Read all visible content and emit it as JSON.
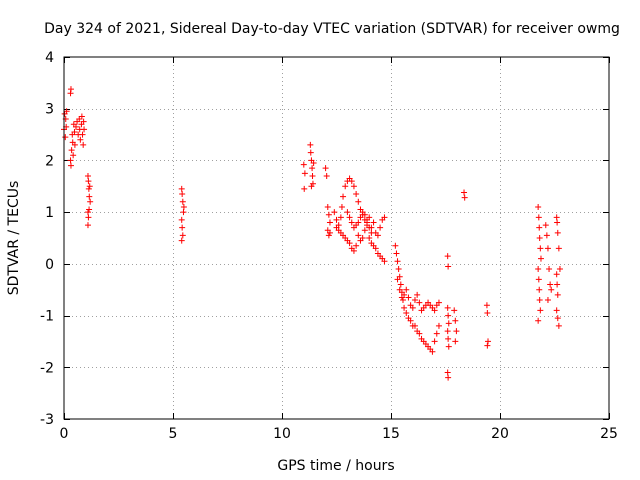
{
  "chart_data": {
    "type": "scatter",
    "title": "Day 324 of 2021, Sidereal Day-to-day VTEC variation (SDTVAR) for receiver owmg",
    "xlabel": "GPS time / hours",
    "ylabel": "SDTVAR / TECUs",
    "xlim": [
      0,
      25
    ],
    "ylim": [
      -3,
      4
    ],
    "xticks": [
      "0",
      "5",
      "10",
      "15",
      "20",
      "25"
    ],
    "yticks": [
      "-3",
      "-2",
      "-1",
      "0",
      "1",
      "2",
      "3",
      "4"
    ],
    "xtick_values": [
      0,
      5,
      10,
      15,
      20,
      25
    ],
    "ytick_values": [
      -3,
      -2,
      -1,
      0,
      1,
      2,
      3,
      4
    ],
    "grid": true,
    "marker": "+",
    "color": "#ff0000",
    "series": [
      {
        "name": "SDTVAR",
        "points": [
          [
            0.0,
            2.6
          ],
          [
            0.03,
            2.9
          ],
          [
            0.06,
            2.45
          ],
          [
            0.08,
            2.8
          ],
          [
            0.1,
            2.65
          ],
          [
            0.12,
            2.95
          ],
          [
            0.3,
            3.3
          ],
          [
            0.32,
            3.38
          ],
          [
            0.3,
            2.0
          ],
          [
            0.32,
            1.9
          ],
          [
            0.35,
            2.2
          ],
          [
            0.38,
            2.5
          ],
          [
            0.4,
            2.35
          ],
          [
            0.42,
            2.1
          ],
          [
            0.45,
            2.7
          ],
          [
            0.48,
            2.55
          ],
          [
            0.5,
            2.3
          ],
          [
            0.55,
            2.65
          ],
          [
            0.6,
            2.75
          ],
          [
            0.65,
            2.5
          ],
          [
            0.7,
            2.8
          ],
          [
            0.72,
            2.6
          ],
          [
            0.75,
            2.4
          ],
          [
            0.8,
            2.7
          ],
          [
            0.82,
            2.85
          ],
          [
            0.85,
            2.5
          ],
          [
            0.88,
            2.3
          ],
          [
            0.9,
            2.75
          ],
          [
            0.92,
            2.6
          ],
          [
            1.1,
            1.7
          ],
          [
            1.12,
            1.6
          ],
          [
            1.14,
            1.45
          ],
          [
            1.16,
            1.3
          ],
          [
            1.18,
            1.5
          ],
          [
            1.2,
            1.2
          ],
          [
            1.1,
            1.0
          ],
          [
            1.12,
            0.9
          ],
          [
            1.15,
            1.05
          ],
          [
            1.1,
            0.75
          ],
          [
            5.4,
            1.45
          ],
          [
            5.42,
            1.35
          ],
          [
            5.45,
            1.2
          ],
          [
            5.5,
            1.1
          ],
          [
            5.48,
            1.0
          ],
          [
            5.4,
            0.85
          ],
          [
            5.42,
            0.7
          ],
          [
            5.45,
            0.55
          ],
          [
            5.4,
            0.45
          ],
          [
            11.0,
            1.92
          ],
          [
            11.05,
            1.75
          ],
          [
            11.02,
            1.45
          ],
          [
            11.3,
            2.3
          ],
          [
            11.32,
            2.15
          ],
          [
            11.35,
            2.0
          ],
          [
            11.38,
            1.85
          ],
          [
            11.4,
            1.7
          ],
          [
            11.42,
            1.55
          ],
          [
            11.45,
            1.95
          ],
          [
            11.35,
            1.5
          ],
          [
            12.0,
            1.85
          ],
          [
            12.05,
            1.7
          ],
          [
            12.1,
            1.1
          ],
          [
            12.15,
            0.95
          ],
          [
            12.2,
            0.8
          ],
          [
            12.1,
            0.65
          ],
          [
            12.15,
            0.55
          ],
          [
            12.2,
            0.6
          ],
          [
            12.4,
            1.0
          ],
          [
            12.5,
            0.85
          ],
          [
            12.6,
            0.75
          ],
          [
            12.7,
            0.9
          ],
          [
            12.75,
            1.1
          ],
          [
            12.8,
            1.3
          ],
          [
            12.9,
            1.5
          ],
          [
            13.0,
            1.6
          ],
          [
            13.1,
            1.65
          ],
          [
            13.2,
            1.6
          ],
          [
            13.3,
            1.5
          ],
          [
            13.4,
            1.35
          ],
          [
            13.5,
            1.2
          ],
          [
            13.6,
            1.05
          ],
          [
            13.7,
            0.95
          ],
          [
            13.8,
            0.85
          ],
          [
            13.9,
            0.75
          ],
          [
            14.0,
            0.7
          ],
          [
            14.1,
            0.6
          ],
          [
            12.5,
            0.7
          ],
          [
            12.6,
            0.65
          ],
          [
            12.7,
            0.6
          ],
          [
            12.8,
            0.55
          ],
          [
            12.9,
            0.5
          ],
          [
            13.0,
            0.45
          ],
          [
            13.1,
            0.4
          ],
          [
            13.2,
            0.3
          ],
          [
            13.3,
            0.25
          ],
          [
            13.4,
            0.35
          ],
          [
            13.5,
            0.55
          ],
          [
            13.6,
            0.45
          ],
          [
            13.7,
            0.5
          ],
          [
            13.8,
            0.65
          ],
          [
            13.9,
            0.8
          ],
          [
            14.0,
            0.9
          ],
          [
            14.1,
            0.7
          ],
          [
            14.2,
            0.8
          ],
          [
            14.3,
            0.6
          ],
          [
            14.4,
            0.55
          ],
          [
            14.5,
            0.7
          ],
          [
            14.6,
            0.85
          ],
          [
            14.7,
            0.9
          ],
          [
            13.0,
            1.0
          ],
          [
            13.1,
            0.9
          ],
          [
            13.2,
            0.8
          ],
          [
            13.3,
            0.7
          ],
          [
            13.4,
            0.75
          ],
          [
            13.5,
            0.8
          ],
          [
            13.6,
            0.9
          ],
          [
            13.7,
            1.0
          ],
          [
            13.8,
            0.95
          ],
          [
            13.9,
            0.85
          ],
          [
            14.0,
            0.5
          ],
          [
            14.1,
            0.4
          ],
          [
            14.2,
            0.35
          ],
          [
            14.3,
            0.3
          ],
          [
            14.4,
            0.2
          ],
          [
            14.5,
            0.15
          ],
          [
            14.6,
            0.1
          ],
          [
            14.7,
            0.05
          ],
          [
            15.2,
            0.35
          ],
          [
            15.25,
            0.2
          ],
          [
            15.3,
            0.05
          ],
          [
            15.35,
            -0.1
          ],
          [
            15.4,
            -0.25
          ],
          [
            15.45,
            -0.4
          ],
          [
            15.5,
            -0.55
          ],
          [
            15.55,
            -0.7
          ],
          [
            15.6,
            -0.85
          ],
          [
            15.7,
            -0.95
          ],
          [
            15.8,
            -1.05
          ],
          [
            15.9,
            -1.1
          ],
          [
            16.0,
            -1.2
          ],
          [
            15.3,
            -0.3
          ],
          [
            15.4,
            -0.5
          ],
          [
            15.5,
            -0.65
          ],
          [
            15.6,
            -0.6
          ],
          [
            15.7,
            -0.5
          ],
          [
            15.8,
            -0.65
          ],
          [
            15.9,
            -0.8
          ],
          [
            16.0,
            -0.85
          ],
          [
            16.1,
            -0.7
          ],
          [
            16.2,
            -0.6
          ],
          [
            16.3,
            -0.75
          ],
          [
            16.4,
            -0.9
          ],
          [
            16.5,
            -0.85
          ],
          [
            16.6,
            -0.8
          ],
          [
            16.7,
            -0.75
          ],
          [
            16.8,
            -0.8
          ],
          [
            16.9,
            -0.85
          ],
          [
            17.0,
            -0.9
          ],
          [
            17.1,
            -0.8
          ],
          [
            17.2,
            -0.75
          ],
          [
            16.1,
            -1.2
          ],
          [
            16.2,
            -1.3
          ],
          [
            16.3,
            -1.35
          ],
          [
            16.4,
            -1.45
          ],
          [
            16.5,
            -1.5
          ],
          [
            16.6,
            -1.55
          ],
          [
            16.7,
            -1.6
          ],
          [
            16.8,
            -1.65
          ],
          [
            16.9,
            -1.7
          ],
          [
            17.0,
            -1.5
          ],
          [
            17.1,
            -1.35
          ],
          [
            17.2,
            -1.2
          ],
          [
            17.6,
            -0.85
          ],
          [
            17.62,
            -1.0
          ],
          [
            17.65,
            -1.15
          ],
          [
            17.6,
            -1.3
          ],
          [
            17.62,
            -1.45
          ],
          [
            17.65,
            -1.6
          ],
          [
            17.6,
            -2.1
          ],
          [
            17.62,
            -2.2
          ],
          [
            17.9,
            -0.9
          ],
          [
            17.95,
            -1.1
          ],
          [
            18.0,
            -1.3
          ],
          [
            17.95,
            -1.5
          ],
          [
            17.6,
            0.15
          ],
          [
            17.62,
            -0.05
          ],
          [
            18.35,
            1.38
          ],
          [
            18.38,
            1.28
          ],
          [
            19.4,
            -0.8
          ],
          [
            19.42,
            -0.95
          ],
          [
            19.45,
            -1.5
          ],
          [
            19.42,
            -1.58
          ],
          [
            21.75,
            1.1
          ],
          [
            21.78,
            0.9
          ],
          [
            21.8,
            0.7
          ],
          [
            21.82,
            0.5
          ],
          [
            21.85,
            0.3
          ],
          [
            21.88,
            0.1
          ],
          [
            21.75,
            -0.1
          ],
          [
            21.78,
            -0.3
          ],
          [
            21.8,
            -0.5
          ],
          [
            21.82,
            -0.7
          ],
          [
            21.85,
            -0.9
          ],
          [
            21.75,
            -1.1
          ],
          [
            22.1,
            0.75
          ],
          [
            22.15,
            0.55
          ],
          [
            22.2,
            0.3
          ],
          [
            22.25,
            -0.1
          ],
          [
            22.3,
            -0.4
          ],
          [
            22.35,
            -0.5
          ],
          [
            22.2,
            -0.7
          ],
          [
            22.6,
            0.9
          ],
          [
            22.62,
            0.8
          ],
          [
            22.65,
            0.6
          ],
          [
            22.7,
            0.3
          ],
          [
            22.75,
            -0.1
          ],
          [
            22.6,
            -0.2
          ],
          [
            22.62,
            -0.4
          ],
          [
            22.65,
            -0.6
          ],
          [
            22.6,
            -0.9
          ],
          [
            22.65,
            -1.05
          ],
          [
            22.7,
            -1.2
          ]
        ]
      }
    ]
  }
}
